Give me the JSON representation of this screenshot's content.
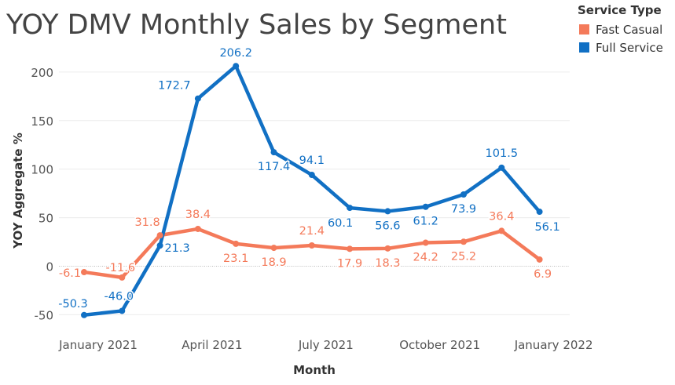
{
  "chart_data": {
    "type": "line",
    "title": "YOY DMV Monthly Sales by Segment",
    "xlabel": "Month",
    "ylabel": "YOY Aggregate %",
    "ylim": [
      -62,
      233
    ],
    "yticks": [
      -50,
      0,
      50,
      100,
      150,
      200
    ],
    "ytick_labels": [
      "-50",
      "0",
      "50",
      "100",
      "150",
      "200"
    ],
    "x": [
      "Jan 2021",
      "Feb 2021",
      "Mar 2021",
      "Apr 2021",
      "May 2021",
      "Jun 2021",
      "Jul 2021",
      "Aug 2021",
      "Sep 2021",
      "Oct 2021",
      "Nov 2021",
      "Dec 2021",
      "Jan 2022",
      "Feb 2022"
    ],
    "xtick_labels": [
      {
        "index": 0,
        "label": "January 2021"
      },
      {
        "index": 3,
        "label": "April 2021"
      },
      {
        "index": 6,
        "label": "July 2021"
      },
      {
        "index": 9,
        "label": "October 2021"
      },
      {
        "index": 12,
        "label": "January 2022"
      }
    ],
    "grid": true,
    "legend": {
      "title": "Service Type",
      "placement": "top-right"
    },
    "series": [
      {
        "name": "Fast Casual",
        "color": "#F47A5A",
        "values": [
          -6.1,
          -11.6,
          31.8,
          38.4,
          23.1,
          18.9,
          21.4,
          17.9,
          18.3,
          24.2,
          25.2,
          36.4,
          6.9,
          null
        ],
        "labels": [
          "-6.1",
          "-11.6",
          "31.8",
          "38.4",
          "23.1",
          "18.9",
          "21.4",
          "17.9",
          "18.3",
          "24.2",
          "25.2",
          "36.4",
          "6.9",
          ""
        ]
      },
      {
        "name": "Full Service",
        "color": "#1170C4",
        "values": [
          -50.3,
          -46.0,
          21.3,
          172.7,
          206.2,
          117.4,
          94.1,
          60.1,
          56.6,
          61.2,
          73.9,
          101.5,
          56.1,
          null
        ],
        "labels": [
          "-50.3",
          "-46.0",
          "21.3",
          "172.7",
          "206.2",
          "117.4",
          "94.1",
          "60.1",
          "56.6",
          "61.2",
          "73.9",
          "101.5",
          "56.1",
          ""
        ]
      }
    ]
  }
}
